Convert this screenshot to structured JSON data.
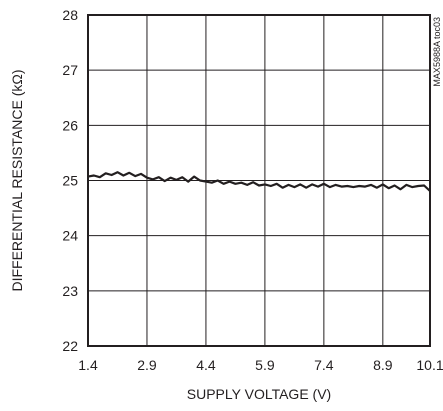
{
  "chart_data": {
    "type": "line",
    "title": "",
    "xlabel": "SUPPLY VOLTAGE (V)",
    "ylabel": "DIFFERENTIAL RESISTANCE (kΩ)",
    "xlim": [
      1.4,
      10.1
    ],
    "ylim": [
      22,
      28
    ],
    "xticks": [
      1.4,
      2.9,
      4.4,
      5.9,
      7.4,
      8.9,
      10.1
    ],
    "xtick_labels": [
      "1.4",
      "2.9",
      "4.4",
      "5.9",
      "7.4",
      "8.9",
      "10.1"
    ],
    "yticks": [
      22,
      23,
      24,
      25,
      26,
      27,
      28
    ],
    "ytick_labels": [
      "22",
      "23",
      "24",
      "25",
      "26",
      "27",
      "28"
    ],
    "grid": true,
    "legend": "none",
    "annotation": "MAX5988A toc03",
    "series": [
      {
        "x": [
          1.4,
          1.55,
          1.7,
          1.85,
          2.0,
          2.15,
          2.3,
          2.45,
          2.6,
          2.75,
          2.9,
          3.05,
          3.2,
          3.35,
          3.5,
          3.65,
          3.8,
          3.95,
          4.1,
          4.25,
          4.4,
          4.55,
          4.7,
          4.85,
          5.0,
          5.15,
          5.3,
          5.45,
          5.6,
          5.75,
          5.9,
          6.05,
          6.2,
          6.35,
          6.5,
          6.65,
          6.8,
          6.95,
          7.1,
          7.25,
          7.4,
          7.55,
          7.7,
          7.85,
          8.0,
          8.15,
          8.3,
          8.45,
          8.6,
          8.75,
          8.9,
          9.05,
          9.2,
          9.35,
          9.5,
          9.65,
          9.8,
          9.95,
          10.1
        ],
        "values": [
          25.07,
          25.09,
          25.06,
          25.13,
          25.1,
          25.15,
          25.09,
          25.14,
          25.08,
          25.12,
          25.05,
          25.02,
          25.06,
          24.99,
          25.05,
          25.01,
          25.06,
          24.98,
          25.07,
          25.0,
          24.98,
          24.96,
          25.0,
          24.94,
          24.98,
          24.94,
          24.96,
          24.92,
          24.97,
          24.91,
          24.93,
          24.9,
          24.94,
          24.87,
          24.92,
          24.88,
          24.93,
          24.87,
          24.93,
          24.89,
          24.94,
          24.88,
          24.92,
          24.89,
          24.9,
          24.88,
          24.9,
          24.89,
          24.92,
          24.87,
          24.93,
          24.86,
          24.91,
          24.84,
          24.92,
          24.88,
          24.9,
          24.91,
          24.81
        ]
      }
    ]
  }
}
